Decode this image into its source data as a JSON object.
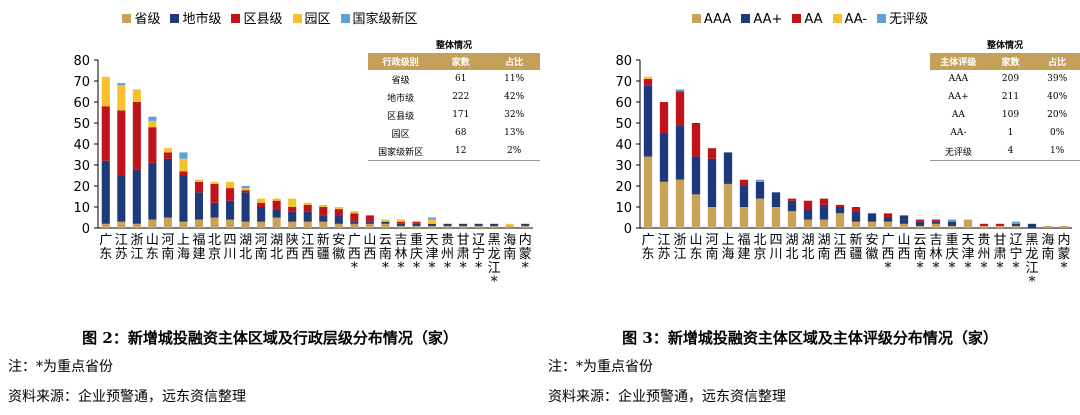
{
  "colors": {
    "c1": "#c9a25a",
    "c2": "#1f3a7a",
    "c3": "#c0141b",
    "c4": "#f7c12d",
    "c5": "#5ea1d6"
  },
  "left": {
    "legend": [
      "省级",
      "地市级",
      "区县级",
      "园区",
      "国家级新区"
    ],
    "table": {
      "title": "整体情况",
      "headers": [
        "行政级别",
        "家数",
        "占比"
      ],
      "rows": [
        [
          "省级",
          "61",
          "11%"
        ],
        [
          "地市级",
          "222",
          "42%"
        ],
        [
          "区县级",
          "171",
          "32%"
        ],
        [
          "园区",
          "68",
          "13%"
        ],
        [
          "国家级新区",
          "12",
          "2%"
        ]
      ]
    },
    "caption": "图 2：新增城投融资主体区域及行政层级分布情况（家）",
    "note": "注：*为重点省份",
    "source": "资料来源：企业预警通，远东资信整理"
  },
  "right": {
    "legend": [
      "AAA",
      "AA+",
      "AA",
      "AA-",
      "无评级"
    ],
    "table": {
      "title": "整体情况",
      "headers": [
        "主体评级",
        "家数",
        "占比"
      ],
      "rows": [
        [
          "AAA",
          "209",
          "39%"
        ],
        [
          "AA+",
          "211",
          "40%"
        ],
        [
          "AA",
          "109",
          "20%"
        ],
        [
          "AA-",
          "1",
          "0%"
        ],
        [
          "无评级",
          "4",
          "1%"
        ]
      ]
    },
    "caption": "图 3：新增城投融资主体区域及主体评级分布情况（家）",
    "note": "注：*为重点省份",
    "source": "资料来源：企业预警通，远东资信整理"
  },
  "chart_data": [
    {
      "type": "bar",
      "stacked": true,
      "ylim": [
        0,
        80
      ],
      "yticks": [
        0,
        10,
        20,
        30,
        40,
        50,
        60,
        70,
        80
      ],
      "grid": false,
      "legend_position": "top",
      "categories": [
        "广东",
        "江苏",
        "浙江",
        "山东",
        "河南",
        "上海",
        "福建",
        "北京",
        "四川",
        "湖北",
        "河南",
        "湖北",
        "陕西",
        "江西",
        "新疆",
        "安徽",
        "广西",
        "山西",
        "云南",
        "吉林",
        "重庆",
        "天津",
        "贵州",
        "甘肃",
        "辽宁",
        "黑龙江",
        "海南",
        "内蒙"
      ],
      "tick_labels": [
        "广东",
        "江苏",
        "浙江",
        "山东",
        "河南",
        "上海",
        "福建",
        "北京",
        "四川",
        "湖北",
        "河南",
        "湖北",
        "陕西",
        "江西",
        "新疆",
        "安徽",
        "广西*",
        "山西",
        "云南*",
        "吉林*",
        "重庆*",
        "天津*",
        "贵州*",
        "甘肃*",
        "辽宁*",
        "黑龙江*",
        "海南",
        "内蒙*"
      ],
      "series": [
        {
          "name": "省级",
          "values": [
            2,
            3,
            2,
            4,
            5,
            3,
            4,
            5,
            4,
            3,
            3,
            5,
            3,
            3,
            3,
            2,
            2,
            2,
            2,
            1,
            1,
            1,
            1,
            1,
            1,
            1,
            1,
            1
          ]
        },
        {
          "name": "地市级",
          "values": [
            30,
            22,
            26,
            27,
            28,
            22,
            13,
            7,
            9,
            14,
            7,
            4,
            5,
            5,
            3,
            4,
            1,
            1,
            1,
            1,
            1,
            1,
            1,
            1,
            1,
            1,
            0,
            1
          ]
        },
        {
          "name": "区县级",
          "values": [
            26,
            31,
            32,
            17,
            3,
            2,
            5,
            9,
            6,
            1,
            2,
            4,
            2,
            3,
            4,
            3,
            4,
            3,
            0,
            1,
            1,
            0,
            0,
            0,
            0,
            0,
            0,
            0
          ]
        },
        {
          "name": "园区",
          "values": [
            14,
            12,
            6,
            3,
            2,
            6,
            1,
            1,
            3,
            1,
            2,
            1,
            4,
            1,
            1,
            1,
            1,
            0,
            1,
            1,
            0,
            2,
            0,
            0,
            0,
            0,
            1,
            0
          ]
        },
        {
          "name": "国家级新区",
          "values": [
            0,
            1,
            0,
            2,
            0,
            3,
            0,
            0,
            0,
            1,
            0,
            0,
            0,
            0,
            0,
            0,
            0,
            0,
            0,
            0,
            0,
            1,
            0,
            0,
            0,
            0,
            0,
            0
          ]
        }
      ]
    },
    {
      "type": "bar",
      "stacked": true,
      "ylim": [
        0,
        80
      ],
      "yticks": [
        0,
        10,
        20,
        30,
        40,
        50,
        60,
        70,
        80
      ],
      "grid": false,
      "legend_position": "top",
      "categories": [
        "广东",
        "江苏",
        "浙江",
        "山东",
        "河南",
        "上海",
        "福建",
        "北京",
        "四川",
        "湖北",
        "湖北",
        "湖南",
        "江西",
        "新疆",
        "安徽",
        "广西",
        "山西",
        "云南",
        "吉林",
        "重庆",
        "天津",
        "贵州",
        "甘肃",
        "辽宁",
        "黑龙江",
        "海南",
        "内蒙"
      ],
      "tick_labels": [
        "广东",
        "江苏",
        "浙江",
        "山东",
        "河南",
        "上海",
        "福建",
        "北京",
        "四川",
        "湖北",
        "湖北",
        "湖南",
        "江西",
        "新疆",
        "安徽",
        "广西*",
        "山西",
        "云南*",
        "吉林*",
        "重庆*",
        "天津*",
        "贵州*",
        "甘肃*",
        "辽宁*",
        "黑龙江*",
        "海南",
        "内蒙*"
      ],
      "series": [
        {
          "name": "AAA",
          "values": [
            34,
            22,
            23,
            16,
            10,
            21,
            10,
            14,
            10,
            8,
            4,
            4,
            7,
            3,
            3,
            3,
            2,
            1,
            2,
            1,
            4,
            1,
            1,
            1,
            0,
            1,
            1
          ]
        },
        {
          "name": "AA+",
          "values": [
            34,
            23,
            26,
            18,
            23,
            15,
            10,
            8,
            7,
            5,
            5,
            7,
            3,
            5,
            4,
            2,
            4,
            2,
            1,
            2,
            0,
            0,
            0,
            1,
            2,
            0,
            0
          ]
        },
        {
          "name": "AA",
          "values": [
            3,
            15,
            16,
            16,
            5,
            0,
            3,
            0,
            0,
            1,
            4,
            3,
            1,
            2,
            0,
            2,
            0,
            1,
            1,
            0,
            0,
            1,
            1,
            0,
            0,
            0,
            0
          ]
        },
        {
          "name": "AA-",
          "values": [
            1,
            0,
            0,
            0,
            0,
            0,
            0,
            0,
            0,
            0,
            0,
            0,
            0,
            0,
            0,
            0,
            0,
            0,
            0,
            0,
            0,
            0,
            0,
            0,
            0,
            0,
            0
          ]
        },
        {
          "name": "无评级",
          "values": [
            0,
            0,
            1,
            0,
            0,
            0,
            0,
            1,
            0,
            0,
            0,
            0,
            0,
            0,
            0,
            0,
            0,
            0,
            0,
            1,
            0,
            0,
            0,
            1,
            0,
            0,
            0
          ]
        }
      ]
    }
  ]
}
